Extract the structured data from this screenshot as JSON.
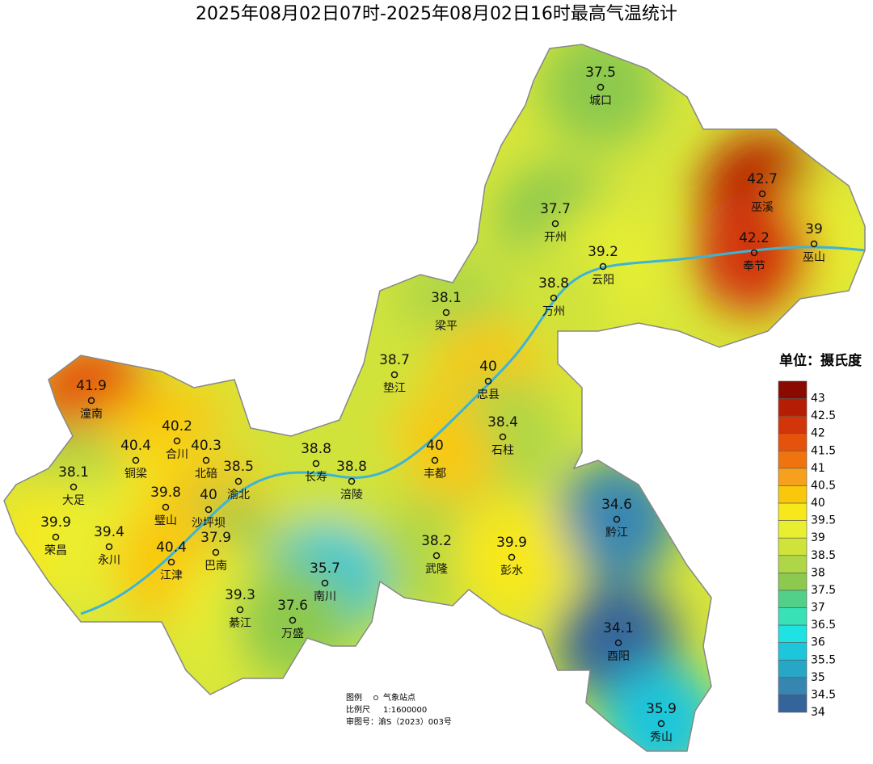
{
  "title": "2025年08月02日07时-2025年08月02日16时最高气温统计",
  "stations": [
    {
      "name": "城口",
      "value": 37.5
    },
    {
      "name": "巫溪",
      "value": 42.7
    },
    {
      "name": "开州",
      "value": 37.7
    },
    {
      "name": "巫山",
      "value": 39
    },
    {
      "name": "奉节",
      "value": 42.2
    },
    {
      "name": "云阳",
      "value": 39.2
    },
    {
      "name": "万州",
      "value": 38.8
    },
    {
      "name": "梁平",
      "value": 38.1
    },
    {
      "name": "垫江",
      "value": 38.7
    },
    {
      "name": "忠县",
      "value": 40
    },
    {
      "name": "潼南",
      "value": 41.9
    },
    {
      "name": "合川",
      "value": 40.2
    },
    {
      "name": "石柱",
      "value": 38.4
    },
    {
      "name": "铜梁",
      "value": 40.4
    },
    {
      "name": "北碚",
      "value": 40.3
    },
    {
      "name": "长寿",
      "value": 38.8
    },
    {
      "name": "丰都",
      "value": 40
    },
    {
      "name": "涪陵",
      "value": 38.8
    },
    {
      "name": "渝北",
      "value": 38.5
    },
    {
      "name": "大足",
      "value": 38.1
    },
    {
      "name": "璧山",
      "value": 39.8
    },
    {
      "name": "沙坪坝",
      "value": 40
    },
    {
      "name": "黔江",
      "value": 34.6
    },
    {
      "name": "荣昌",
      "value": 39.9
    },
    {
      "name": "永川",
      "value": 39.4
    },
    {
      "name": "巴南",
      "value": 37.9
    },
    {
      "name": "武隆",
      "value": 38.2
    },
    {
      "name": "彭水",
      "value": 39.9
    },
    {
      "name": "江津",
      "value": 40.4
    },
    {
      "name": "南川",
      "value": 35.7
    },
    {
      "name": "綦江",
      "value": 39.3
    },
    {
      "name": "万盛",
      "value": 37.6
    },
    {
      "name": "酉阳",
      "value": 34.1
    },
    {
      "name": "秀山",
      "value": 35.9
    }
  ],
  "legend": {
    "title": "单位：摄氏度",
    "ticks": [
      43,
      42.5,
      42,
      41.5,
      41,
      40.5,
      40,
      39.5,
      39,
      38.5,
      38,
      37.5,
      37,
      36.5,
      36,
      35.5,
      35,
      34.5,
      34
    ],
    "colors": [
      "#8b0a00",
      "#b51e05",
      "#d2350a",
      "#e4520c",
      "#ef7410",
      "#f5a11e",
      "#f9c80a",
      "#f7e81c",
      "#e8ef30",
      "#cfe33a",
      "#aed646",
      "#8cc94e",
      "#52d08a",
      "#38e2b6",
      "#1fe2e2",
      "#1ec6dc",
      "#27a7c6",
      "#3786b2",
      "#35649a"
    ]
  },
  "footer": {
    "legend_label": "图例",
    "station_label": "气象站点",
    "scale_label": "比例尺",
    "scale": "1:1600000",
    "approval": "审图号：渝S（2023）003号"
  }
}
